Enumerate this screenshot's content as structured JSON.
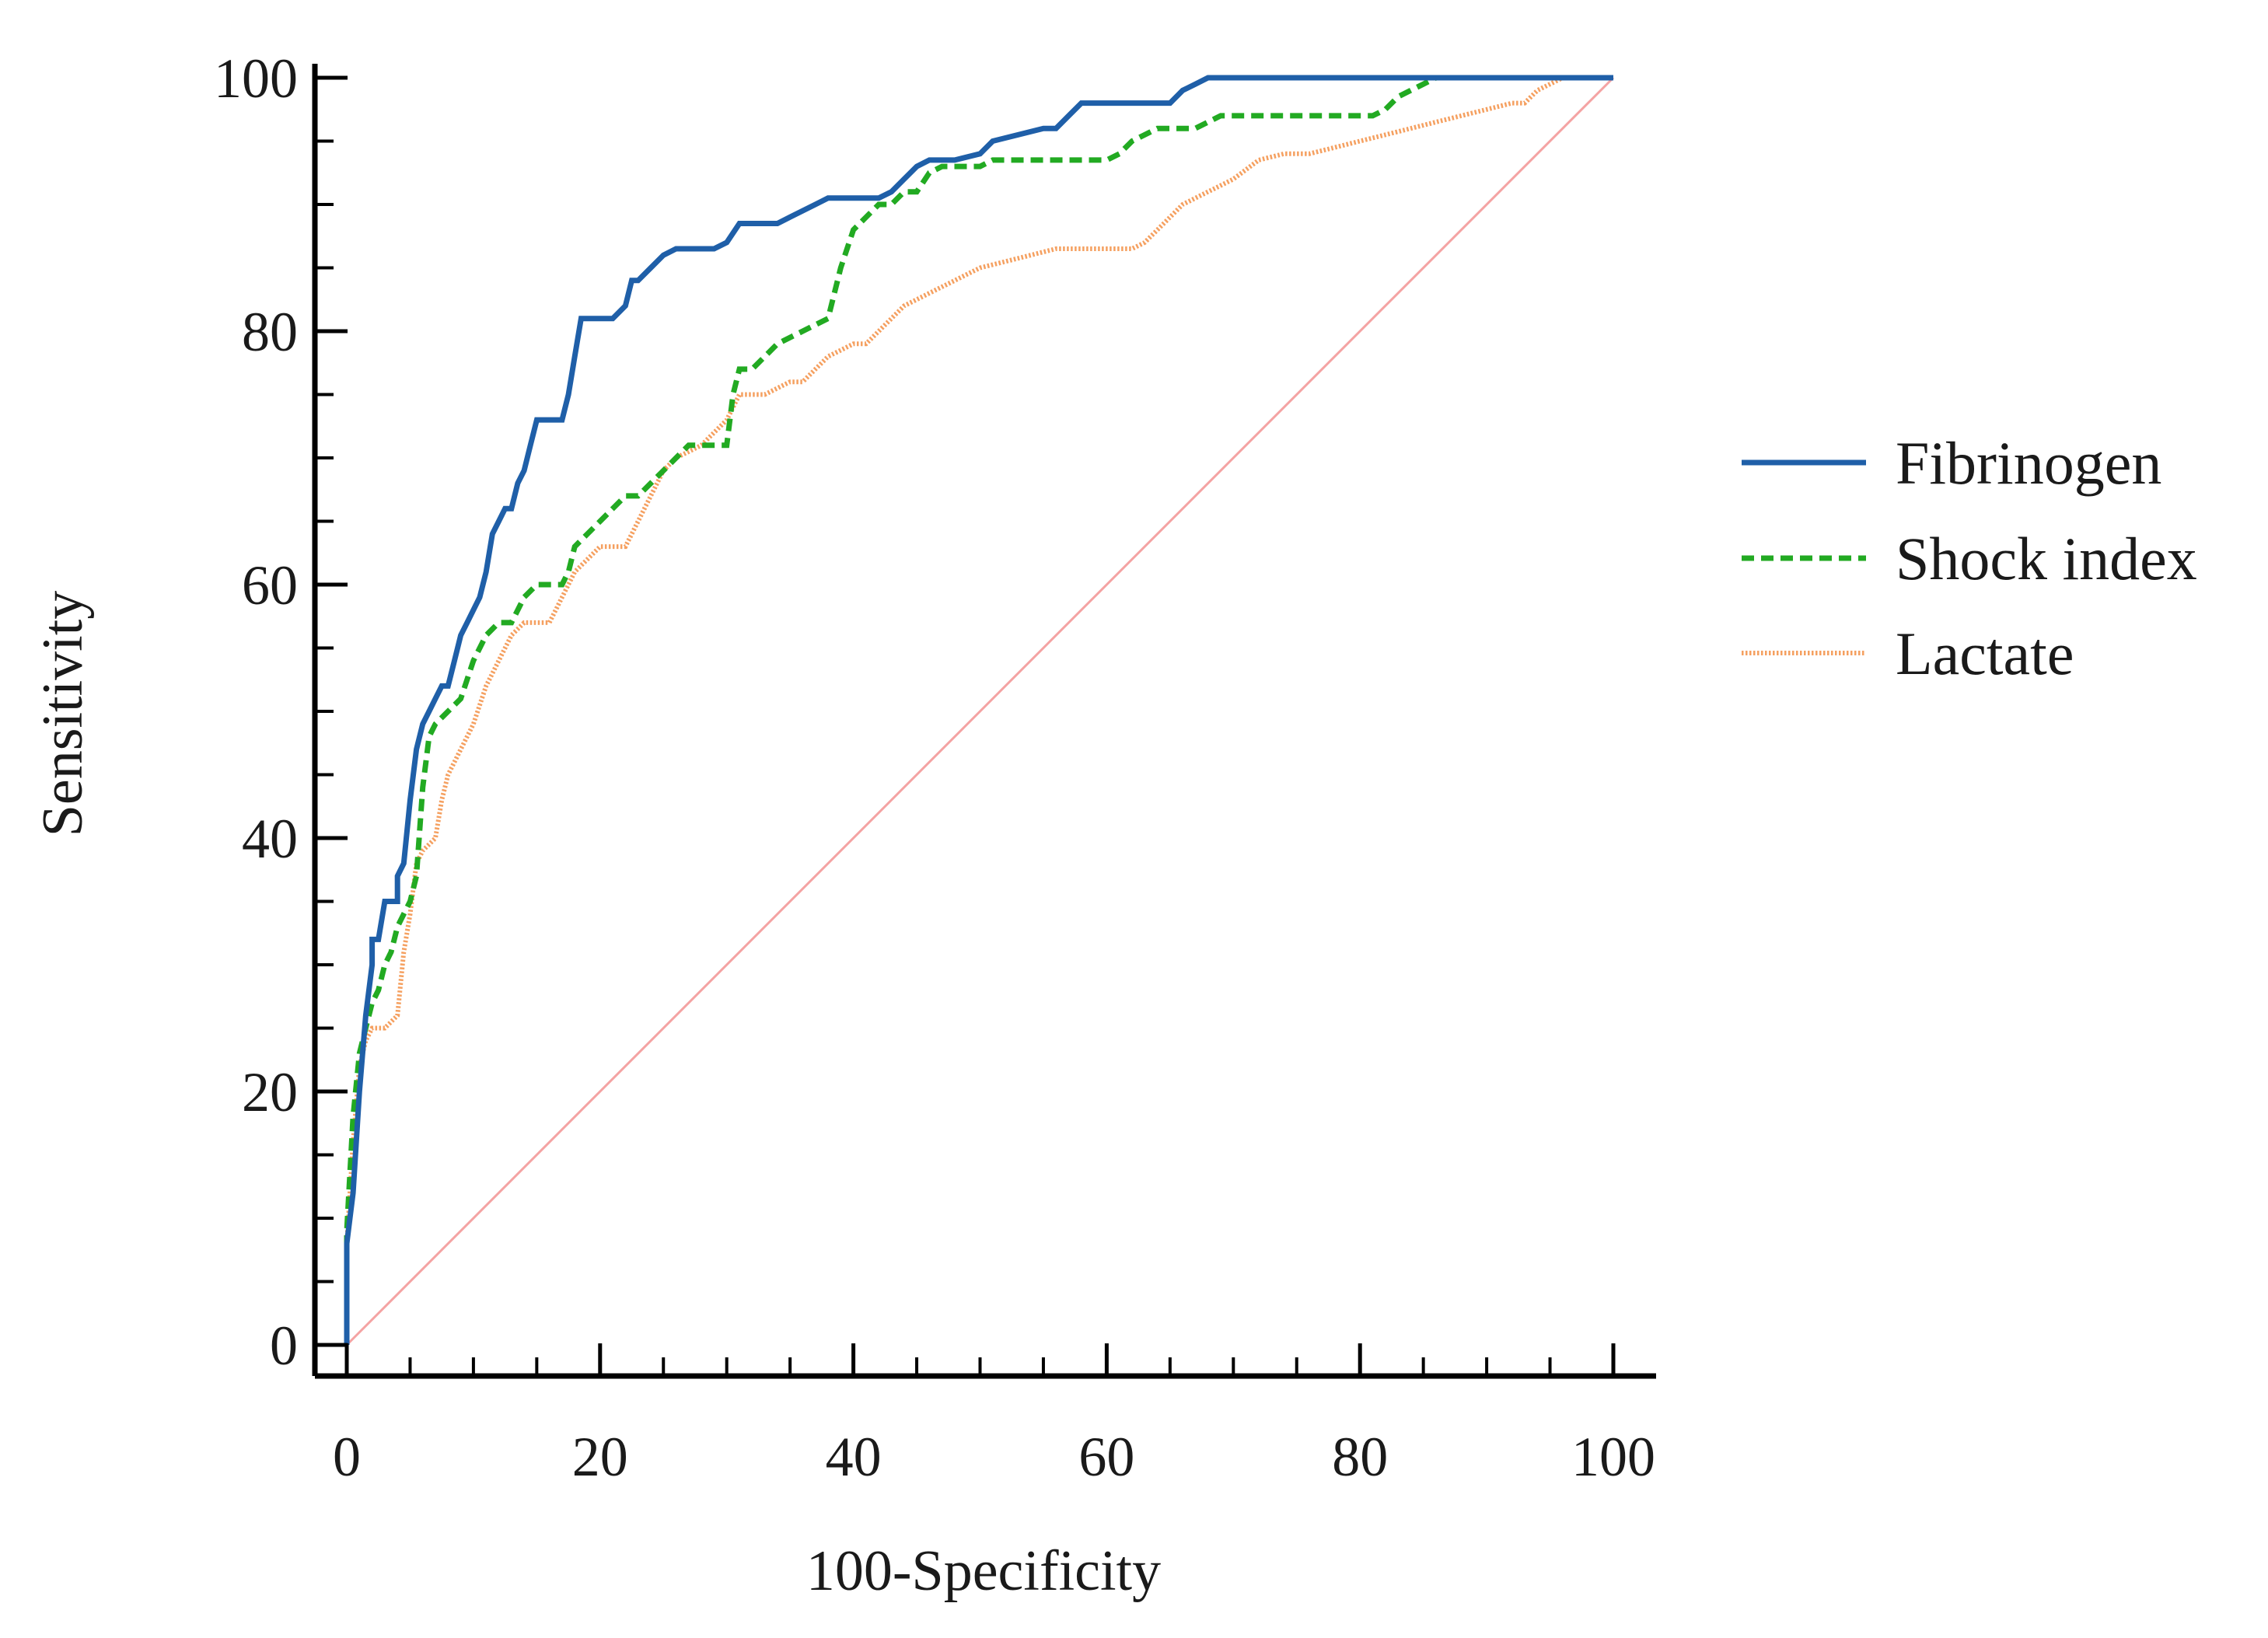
{
  "chart_data": {
    "type": "line",
    "title": "",
    "xlabel": "100-Specificity",
    "ylabel": "Sensitivity",
    "xlim": [
      0,
      100
    ],
    "ylim": [
      0,
      100
    ],
    "xticks": [
      0,
      20,
      40,
      60,
      80,
      100
    ],
    "yticks": [
      0,
      20,
      40,
      60,
      80,
      100
    ],
    "x_minor_step": 5,
    "y_minor_step": 5,
    "grid": false,
    "legend_position": "right",
    "reference_line": {
      "name": "Reference",
      "color": "#f4a3a3",
      "points": [
        [
          0,
          0
        ],
        [
          100,
          100
        ]
      ]
    },
    "series": [
      {
        "name": "Fibrinogen",
        "color": "#1f5fa8",
        "style": "solid",
        "points": [
          [
            0,
            0
          ],
          [
            0,
            8
          ],
          [
            0.5,
            12
          ],
          [
            1,
            20
          ],
          [
            1.5,
            26
          ],
          [
            2,
            30
          ],
          [
            2,
            32
          ],
          [
            2.5,
            32
          ],
          [
            3,
            35
          ],
          [
            3.5,
            35
          ],
          [
            4,
            35
          ],
          [
            4,
            37
          ],
          [
            4.5,
            38
          ],
          [
            5,
            43
          ],
          [
            5.5,
            47
          ],
          [
            6,
            49
          ],
          [
            6.5,
            50
          ],
          [
            7,
            51
          ],
          [
            7.5,
            52
          ],
          [
            8,
            52
          ],
          [
            8.5,
            54
          ],
          [
            9,
            56
          ],
          [
            9.5,
            57
          ],
          [
            10,
            58
          ],
          [
            10.5,
            59
          ],
          [
            11,
            61
          ],
          [
            11.5,
            64
          ],
          [
            12,
            65
          ],
          [
            12.5,
            66
          ],
          [
            13,
            66
          ],
          [
            13.5,
            68
          ],
          [
            14,
            69
          ],
          [
            14.5,
            71
          ],
          [
            15,
            73
          ],
          [
            16,
            73
          ],
          [
            17,
            73
          ],
          [
            17.5,
            75
          ],
          [
            18,
            78
          ],
          [
            18.5,
            81
          ],
          [
            19,
            81
          ],
          [
            20,
            81
          ],
          [
            21,
            81
          ],
          [
            22,
            82
          ],
          [
            22.5,
            84
          ],
          [
            23,
            84
          ],
          [
            24,
            85
          ],
          [
            25,
            86
          ],
          [
            26,
            86.5
          ],
          [
            27,
            86.5
          ],
          [
            28,
            86.5
          ],
          [
            29,
            86.5
          ],
          [
            30,
            87
          ],
          [
            31,
            88.5
          ],
          [
            32,
            88.5
          ],
          [
            33,
            88.5
          ],
          [
            34,
            88.5
          ],
          [
            35,
            89
          ],
          [
            36,
            89.5
          ],
          [
            37,
            90
          ],
          [
            38,
            90.5
          ],
          [
            40,
            90.5
          ],
          [
            42,
            90.5
          ],
          [
            43,
            91
          ],
          [
            44,
            92
          ],
          [
            45,
            93
          ],
          [
            46,
            93.5
          ],
          [
            48,
            93.5
          ],
          [
            50,
            94
          ],
          [
            51,
            95
          ],
          [
            53,
            95.5
          ],
          [
            55,
            96
          ],
          [
            56,
            96
          ],
          [
            57,
            97
          ],
          [
            58,
            98
          ],
          [
            60,
            98
          ],
          [
            62,
            98
          ],
          [
            64,
            98
          ],
          [
            65,
            98
          ],
          [
            66,
            99
          ],
          [
            67,
            99.5
          ],
          [
            68,
            100
          ],
          [
            75,
            100
          ],
          [
            85,
            100
          ],
          [
            100,
            100
          ]
        ]
      },
      {
        "name": "Shock index",
        "color": "#22aa22",
        "style": "dashed",
        "points": [
          [
            0,
            0
          ],
          [
            0,
            9
          ],
          [
            0.5,
            18
          ],
          [
            1,
            23
          ],
          [
            1.5,
            25
          ],
          [
            2,
            27
          ],
          [
            2.5,
            28
          ],
          [
            3,
            30
          ],
          [
            3.5,
            31
          ],
          [
            4,
            33
          ],
          [
            4.5,
            34
          ],
          [
            5,
            35
          ],
          [
            5.5,
            37
          ],
          [
            6,
            44
          ],
          [
            6.5,
            48
          ],
          [
            7,
            49
          ],
          [
            8,
            50
          ],
          [
            9,
            51
          ],
          [
            10,
            54
          ],
          [
            11,
            56
          ],
          [
            12,
            57
          ],
          [
            13,
            57
          ],
          [
            14,
            59
          ],
          [
            15,
            60
          ],
          [
            16,
            60
          ],
          [
            17,
            60
          ],
          [
            17.5,
            61
          ],
          [
            18,
            63
          ],
          [
            19,
            64
          ],
          [
            20,
            65
          ],
          [
            21,
            66
          ],
          [
            22,
            67
          ],
          [
            23,
            67
          ],
          [
            24,
            68
          ],
          [
            25,
            69
          ],
          [
            26,
            70
          ],
          [
            27,
            71
          ],
          [
            28,
            71
          ],
          [
            30,
            71
          ],
          [
            30.5,
            75
          ],
          [
            31,
            77
          ],
          [
            32,
            77
          ],
          [
            33,
            78
          ],
          [
            34,
            79
          ],
          [
            35,
            79.5
          ],
          [
            36,
            80
          ],
          [
            37,
            80.5
          ],
          [
            38,
            81
          ],
          [
            39,
            85
          ],
          [
            40,
            88
          ],
          [
            41,
            89
          ],
          [
            42,
            90
          ],
          [
            43,
            90
          ],
          [
            44,
            91
          ],
          [
            45,
            91
          ],
          [
            46,
            92.5
          ],
          [
            47,
            93
          ],
          [
            48,
            93
          ],
          [
            49,
            93
          ],
          [
            50,
            93
          ],
          [
            51,
            93.5
          ],
          [
            52,
            93.5
          ],
          [
            54,
            93.5
          ],
          [
            56,
            93.5
          ],
          [
            58,
            93.5
          ],
          [
            60,
            93.5
          ],
          [
            61,
            94
          ],
          [
            62,
            95
          ],
          [
            63,
            95.5
          ],
          [
            64,
            96
          ],
          [
            66,
            96
          ],
          [
            67,
            96
          ],
          [
            68,
            96.5
          ],
          [
            69,
            97
          ],
          [
            71,
            97
          ],
          [
            74,
            97
          ],
          [
            78,
            97
          ],
          [
            81,
            97
          ],
          [
            82,
            97.5
          ],
          [
            83,
            98.5
          ],
          [
            84,
            99
          ],
          [
            85,
            99.5
          ],
          [
            86,
            100
          ],
          [
            90,
            100
          ],
          [
            95,
            100
          ],
          [
            100,
            100
          ]
        ]
      },
      {
        "name": "Lactate",
        "color": "#f5a060",
        "style": "dotted",
        "points": [
          [
            0,
            0
          ],
          [
            0,
            8
          ],
          [
            0.5,
            16
          ],
          [
            1,
            22
          ],
          [
            1.5,
            24
          ],
          [
            2,
            25
          ],
          [
            3,
            25
          ],
          [
            4,
            26
          ],
          [
            4.5,
            31
          ],
          [
            5,
            34
          ],
          [
            5.5,
            38
          ],
          [
            6,
            39
          ],
          [
            7,
            40
          ],
          [
            7.5,
            43
          ],
          [
            8,
            45
          ],
          [
            9,
            47
          ],
          [
            10,
            49
          ],
          [
            11,
            52
          ],
          [
            12,
            54
          ],
          [
            13,
            56
          ],
          [
            14,
            57
          ],
          [
            15,
            57
          ],
          [
            16,
            57
          ],
          [
            17,
            59
          ],
          [
            18,
            61
          ],
          [
            19,
            62
          ],
          [
            20,
            63
          ],
          [
            21,
            63
          ],
          [
            22,
            63
          ],
          [
            23,
            65
          ],
          [
            24,
            67
          ],
          [
            25,
            69
          ],
          [
            26,
            70
          ],
          [
            28,
            71
          ],
          [
            29,
            72
          ],
          [
            30,
            73
          ],
          [
            31,
            75
          ],
          [
            32,
            75
          ],
          [
            33,
            75
          ],
          [
            34,
            75.5
          ],
          [
            35,
            76
          ],
          [
            36,
            76
          ],
          [
            37,
            77
          ],
          [
            38,
            78
          ],
          [
            40,
            79
          ],
          [
            41,
            79
          ],
          [
            42,
            80
          ],
          [
            43,
            81
          ],
          [
            44,
            82
          ],
          [
            46,
            83
          ],
          [
            48,
            84
          ],
          [
            50,
            85
          ],
          [
            52,
            85.5
          ],
          [
            54,
            86
          ],
          [
            56,
            86.5
          ],
          [
            58,
            86.5
          ],
          [
            60,
            86.5
          ],
          [
            62,
            86.5
          ],
          [
            63,
            87
          ],
          [
            64,
            88
          ],
          [
            65,
            89
          ],
          [
            66,
            90
          ],
          [
            68,
            91
          ],
          [
            70,
            92
          ],
          [
            72,
            93.5
          ],
          [
            74,
            94
          ],
          [
            76,
            94
          ],
          [
            78,
            94.5
          ],
          [
            80,
            95
          ],
          [
            82,
            95.5
          ],
          [
            84,
            96
          ],
          [
            86,
            96.5
          ],
          [
            88,
            97
          ],
          [
            90,
            97.5
          ],
          [
            92,
            98
          ],
          [
            93,
            98
          ],
          [
            94,
            99
          ],
          [
            95,
            99.5
          ],
          [
            96,
            100
          ],
          [
            98,
            100
          ],
          [
            100,
            100
          ]
        ]
      }
    ]
  }
}
